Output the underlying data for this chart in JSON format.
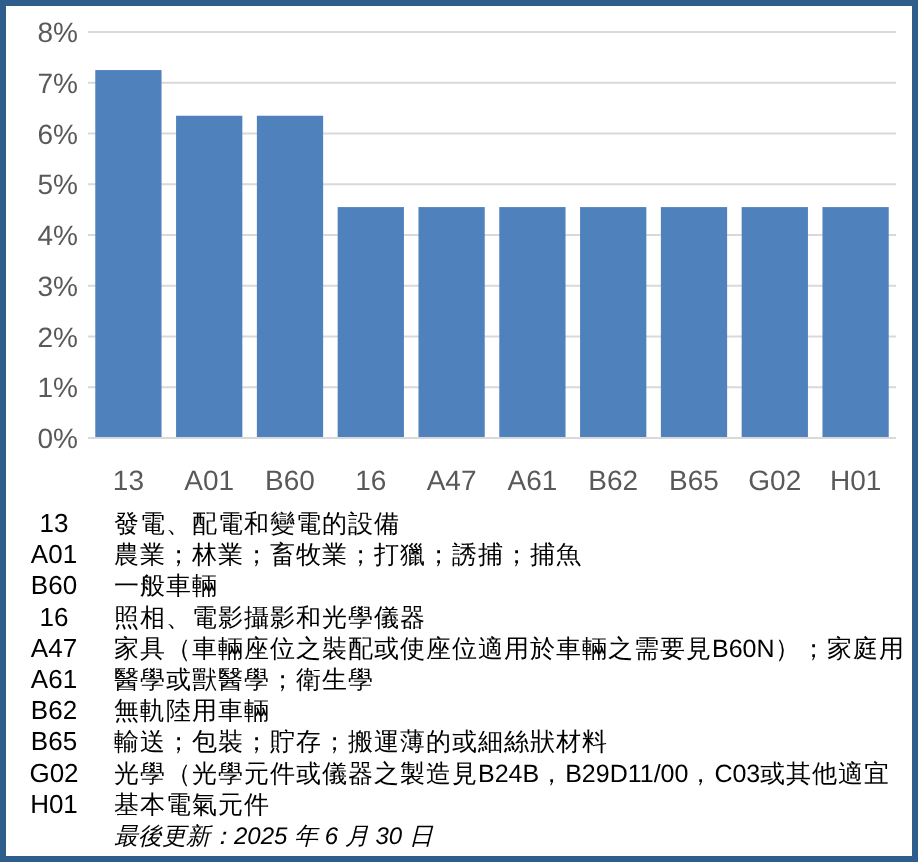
{
  "chart_data": {
    "type": "bar",
    "categories": [
      "13",
      "A01",
      "B60",
      "16",
      "A47",
      "A61",
      "B62",
      "B65",
      "G02",
      "H01"
    ],
    "values": [
      7.25,
      6.35,
      6.35,
      4.55,
      4.55,
      4.55,
      4.55,
      4.55,
      4.55,
      4.55
    ],
    "color": "#4f81bd",
    "ylim": [
      0,
      8
    ],
    "yticks": [
      {
        "value": 0,
        "label": "0%"
      },
      {
        "value": 1,
        "label": "1%"
      },
      {
        "value": 2,
        "label": "2%"
      },
      {
        "value": 3,
        "label": "3%"
      },
      {
        "value": 4,
        "label": "4%"
      },
      {
        "value": 5,
        "label": "5%"
      },
      {
        "value": 6,
        "label": "6%"
      },
      {
        "value": 7,
        "label": "7%"
      },
      {
        "value": 8,
        "label": "8%"
      }
    ],
    "grid": "y",
    "annotations": [
      "13 發電、配電和變電的設備",
      "A01 農業；林業；畜牧業；打獵；誘捕；捕魚",
      "B60 一般車輛",
      "16 照相、電影攝影和光學儀器",
      "A47 家具（車輛座位之裝配或使座位適用於車輛之需要見B60N）；家庭用",
      "A61 醫學或獸醫學；衛生學",
      "B62 無軌陸用車輛",
      "B65 輸送；包裝；貯存；搬運薄的或細絲狀材料",
      "G02 光學（光學元件或儀器之製造見B24B，B29D11/00，C03或其他適宜",
      "H01 基本電氣元件",
      "最後更新：2025 年 6 月 30 日"
    ]
  }
}
